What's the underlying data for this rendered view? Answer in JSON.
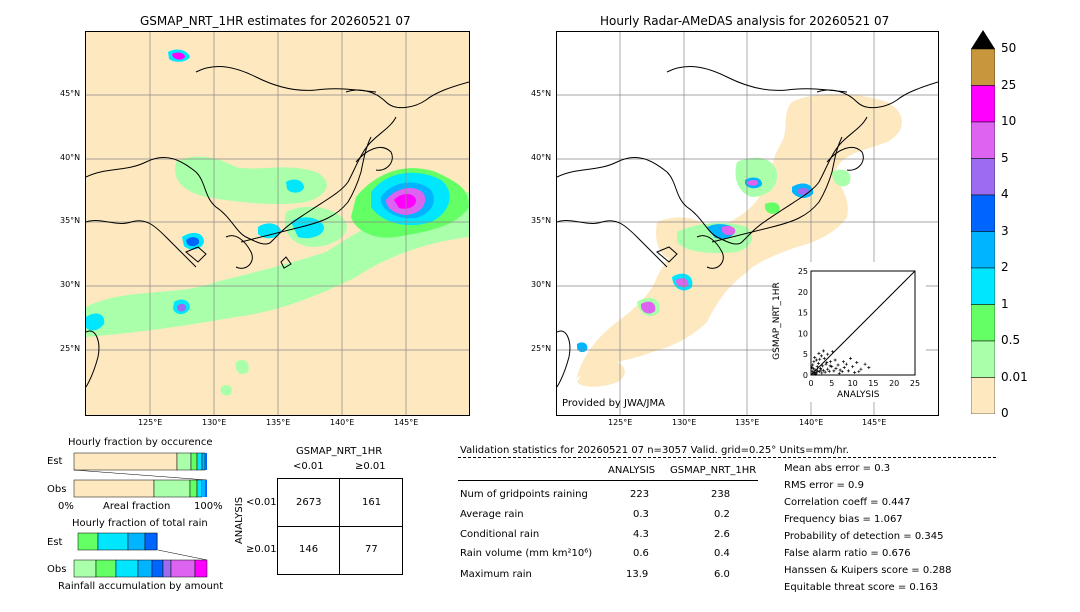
{
  "left_map": {
    "title": "GSMAP_NRT_1HR estimates for 20260521 07",
    "lat_labels": [
      "45°N",
      "40°N",
      "35°N",
      "30°N",
      "25°N"
    ],
    "lon_labels": [
      "125°E",
      "130°E",
      "135°E",
      "140°E",
      "145°E"
    ]
  },
  "right_map": {
    "title": "Hourly Radar-AMeDAS analysis for 20260521 07",
    "lat_labels": [
      "45°N",
      "40°N",
      "35°N",
      "30°N",
      "25°N"
    ],
    "lon_labels": [
      "125°E",
      "130°E",
      "135°E",
      "140°E",
      "145°E"
    ],
    "credit": "Provided by JWA/JMA"
  },
  "colorbar": {
    "labels": [
      "50",
      "25",
      "10",
      "5",
      "4",
      "3",
      "2",
      "1",
      "0.5",
      "0.01",
      "0"
    ],
    "colors": [
      "#c8963c",
      "#ff00ff",
      "#dc64f0",
      "#9b6cf0",
      "#0064ff",
      "#00b4ff",
      "#00e6ff",
      "#64ff64",
      "#aaffaa",
      "#fde8c0"
    ]
  },
  "fraction_occurrence": {
    "title": "Hourly fraction by occurence",
    "rows": [
      "Est",
      "Obs"
    ],
    "axis_left": "0%",
    "axis_mid": "Areal fraction",
    "axis_right": "100%"
  },
  "fraction_total": {
    "title": "Hourly fraction of total rain",
    "rows": [
      "Est",
      "Obs"
    ],
    "footer": "Rainfall accumulation by amount"
  },
  "contingency": {
    "header": "GSMAP_NRT_1HR",
    "col_labels": [
      "<0.01",
      "≥0.01"
    ],
    "row_axis": "ANALYSIS",
    "row_labels": [
      "<0.01",
      "≥0.01"
    ],
    "cells": [
      [
        "2673",
        "161"
      ],
      [
        "146",
        "77"
      ]
    ]
  },
  "validation": {
    "header": "Validation statistics for 20260521 07  n=3057 Valid. grid=0.25° Units=mm/hr.",
    "col_analysis": "ANALYSIS",
    "col_gsmap": "GSMAP_NRT_1HR",
    "rows": [
      {
        "label": "Num of gridpoints raining",
        "analysis": "223",
        "gsmap": "238"
      },
      {
        "label": "Average rain",
        "analysis": "0.3",
        "gsmap": "0.2"
      },
      {
        "label": "Conditional rain",
        "analysis": "4.3",
        "gsmap": "2.6"
      },
      {
        "label": "Rain volume (mm km²10⁶)",
        "analysis": "0.6",
        "gsmap": "0.4"
      },
      {
        "label": "Maximum rain",
        "analysis": "13.9",
        "gsmap": "6.0"
      }
    ],
    "scores": [
      "Mean abs error =    0.3",
      "RMS error =    0.9",
      "Correlation coeff =  0.447",
      "Frequency bias =  1.067",
      "Probability of detection =  0.345",
      "False alarm ratio =  0.676",
      "Hanssen & Kuipers score =  0.288",
      "Equitable threat score =  0.163"
    ]
  },
  "chart_data": [
    {
      "type": "scatter",
      "title": "",
      "xlabel": "ANALYSIS",
      "ylabel": "GSMAP_NRT_1HR",
      "xlim": [
        0,
        25
      ],
      "ylim": [
        0,
        25
      ],
      "xticks": [
        "0",
        "5",
        "10",
        "15",
        "20",
        "25"
      ],
      "yticks": [
        "0",
        "5",
        "10",
        "15",
        "20",
        "25"
      ],
      "points": [
        [
          0.5,
          0.3
        ],
        [
          0.8,
          0.6
        ],
        [
          1.0,
          1.2
        ],
        [
          1.2,
          0.4
        ],
        [
          1.5,
          2.0
        ],
        [
          0.6,
          1.5
        ],
        [
          2.0,
          0.8
        ],
        [
          2.3,
          1.6
        ],
        [
          0.4,
          2.4
        ],
        [
          1.8,
          2.8
        ],
        [
          2.6,
          0.5
        ],
        [
          3.0,
          1.1
        ],
        [
          0.7,
          3.2
        ],
        [
          1.3,
          3.6
        ],
        [
          2.8,
          2.2
        ],
        [
          3.4,
          0.7
        ],
        [
          0.3,
          0.9
        ],
        [
          1.1,
          0.2
        ],
        [
          4.0,
          1.4
        ],
        [
          3.6,
          2.6
        ],
        [
          2.1,
          3.8
        ],
        [
          0.9,
          4.2
        ],
        [
          4.4,
          0.9
        ],
        [
          1.6,
          1.0
        ],
        [
          5.0,
          2.0
        ],
        [
          5.5,
          1.0
        ],
        [
          4.7,
          3.2
        ],
        [
          3.2,
          4.0
        ],
        [
          2.5,
          4.6
        ],
        [
          6.0,
          1.6
        ],
        [
          6.5,
          2.4
        ],
        [
          7.0,
          1.2
        ],
        [
          5.2,
          5.6
        ],
        [
          4.0,
          5.0
        ],
        [
          7.5,
          0.8
        ],
        [
          8.0,
          1.8
        ],
        [
          8.5,
          2.6
        ],
        [
          9.0,
          1.0
        ],
        [
          10.0,
          2.0
        ],
        [
          10.5,
          0.6
        ],
        [
          11.0,
          3.0
        ],
        [
          12.0,
          1.4
        ],
        [
          13.0,
          2.6
        ],
        [
          13.9,
          1.8
        ],
        [
          9.5,
          4.0
        ],
        [
          11.5,
          0.8
        ],
        [
          3.8,
          3.0
        ],
        [
          2.4,
          1.2
        ],
        [
          1.4,
          0.7
        ],
        [
          0.2,
          1.8
        ],
        [
          6.8,
          0.4
        ],
        [
          5.8,
          3.6
        ],
        [
          7.8,
          3.2
        ],
        [
          4.6,
          2.2
        ],
        [
          3.0,
          5.8
        ],
        [
          1.9,
          5.2
        ]
      ]
    }
  ]
}
